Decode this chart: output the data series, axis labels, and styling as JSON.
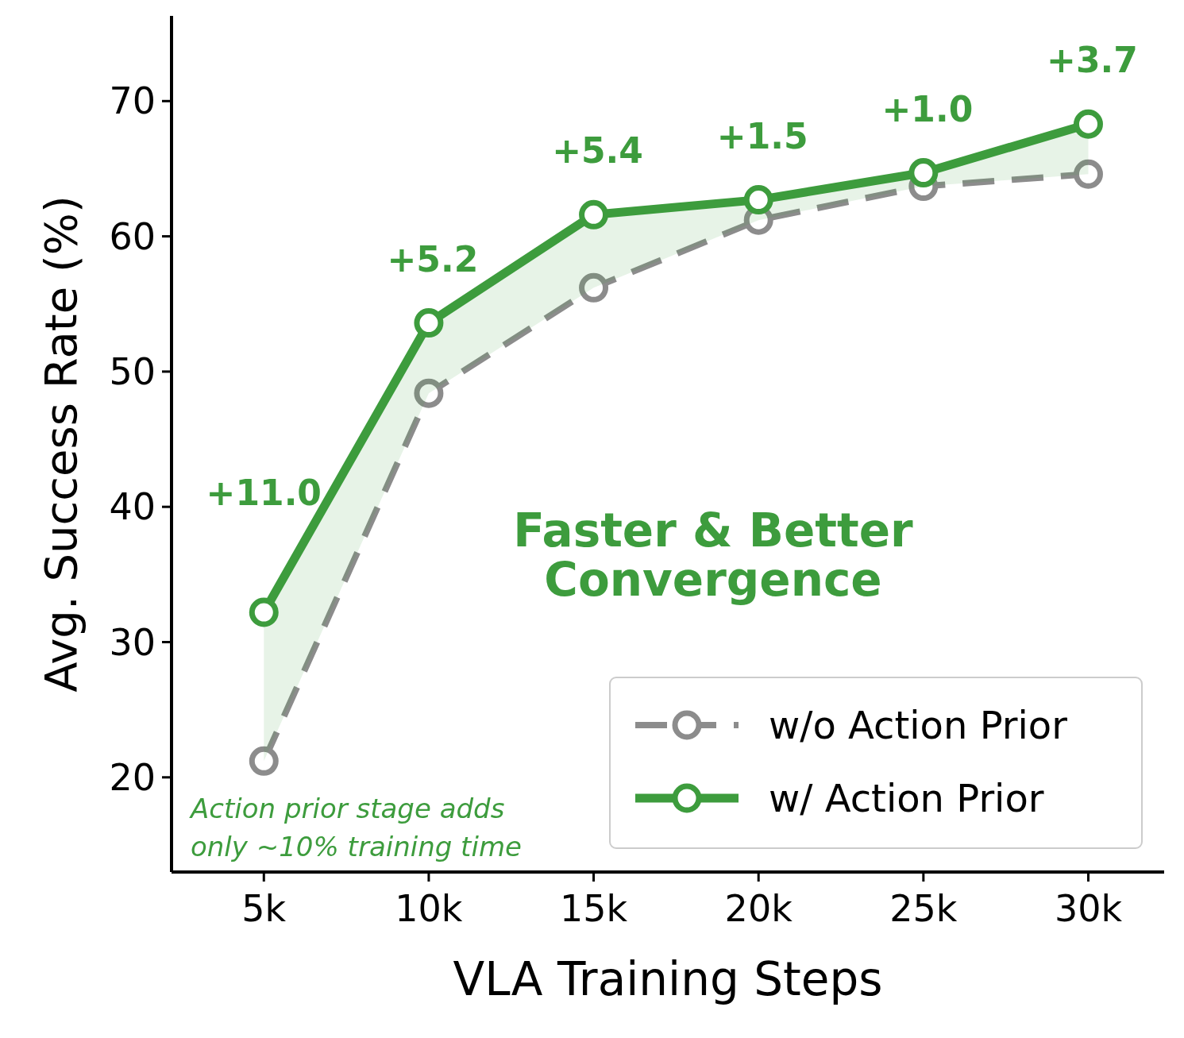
{
  "chart_data": {
    "type": "line",
    "xlabel": "VLA Training Steps",
    "ylabel": "Avg. Success Rate (%)",
    "x": [
      5000,
      10000,
      15000,
      20000,
      25000,
      30000
    ],
    "xlim": [
      2200,
      32300
    ],
    "xticks": [
      {
        "value": 5000,
        "label": "5k"
      },
      {
        "value": 10000,
        "label": "10k"
      },
      {
        "value": 15000,
        "label": "15k"
      },
      {
        "value": 20000,
        "label": "20k"
      },
      {
        "value": 25000,
        "label": "25k"
      },
      {
        "value": 30000,
        "label": "30k"
      }
    ],
    "ylim": [
      13,
      76.3
    ],
    "yticks": [
      20,
      30,
      40,
      50,
      60,
      70
    ],
    "series": [
      {
        "name": "w/o Action Prior",
        "color": "#8c8c8c",
        "line_style": "dashed",
        "values": [
          21.2,
          48.4,
          56.2,
          61.2,
          63.7,
          64.6
        ]
      },
      {
        "name": "w/ Action Prior",
        "color": "#3d9c3d",
        "line_style": "solid",
        "values": [
          32.2,
          53.6,
          61.6,
          62.7,
          64.7,
          68.3
        ],
        "lower": [
          21.2,
          48.4,
          56.2,
          61.2,
          63.7,
          64.6
        ],
        "upper": [
          32.2,
          53.6,
          61.6,
          62.7,
          64.7,
          68.3
        ]
      }
    ],
    "marker": "circle",
    "legend": "bottom right",
    "grid": false,
    "annotations": [
      "+11.0",
      {
        "text": "+5.2",
        "x": 10000,
        "y": 53.6
      },
      {
        "text": "+5.4",
        "x": 15000,
        "y": 61.6
      },
      {
        "text": "+1.5",
        "x": 20000,
        "y": 62.7
      },
      {
        "text": "+1.0",
        "x": 25000,
        "y": 64.7
      },
      {
        "text": "+3.7",
        "x": 30000,
        "y": 68.3
      },
      "Faster & Better Convergence",
      "Action prior stage adds only ~10% training time"
    ]
  }
}
